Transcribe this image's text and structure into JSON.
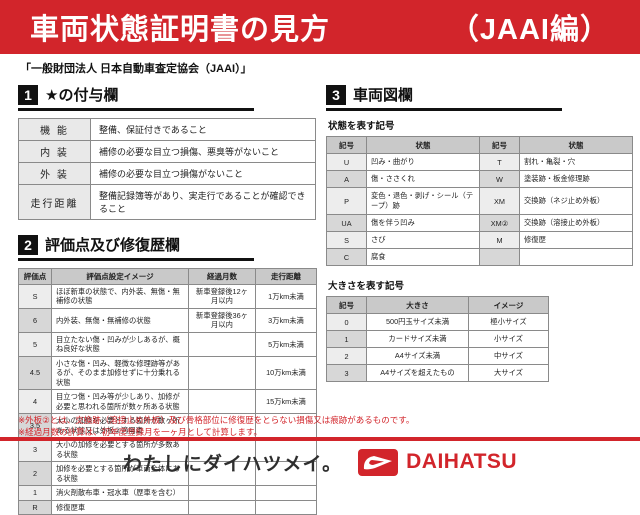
{
  "banner": {
    "title": "車両状態証明書の見方",
    "edition": "（JAAI編）"
  },
  "subtitle": "「一般財団法人 日本自動車査定協会（JAAI）」",
  "section1": {
    "number": "1",
    "title": "★の付与欄",
    "rows": [
      [
        "機 能",
        "整備、保証付きであること"
      ],
      [
        "内 装",
        "補修の必要な目立つ損傷、悪臭等がないこと"
      ],
      [
        "外 装",
        "補修の必要な目立つ損傷がないこと"
      ],
      [
        "走行距離",
        "整備記録簿等があり、実走行であることが確認できること"
      ]
    ]
  },
  "section2": {
    "number": "2",
    "title": "評価点及び修復歴欄",
    "headers": [
      "評価点",
      "評価点設定イメージ",
      "経過月数",
      "走行距離"
    ],
    "rows": [
      [
        "S",
        "ほぼ新車の状態で、内外装、無傷・無補修の状態",
        "新車登録後12ヶ月以内",
        "1万km未満"
      ],
      [
        "6",
        "内外装、無傷・無補修の状態",
        "新車登録後36ヶ月以内",
        "3万km未満"
      ],
      [
        "5",
        "目立たない傷・凹みが少しあるが、概ね良好な状態",
        "",
        "5万km未満"
      ],
      [
        "4.5",
        "小さな傷・凹み、軽微な修理跡等があるが、そのまま加修せずに十分乗れる状態",
        "",
        "10万km未満"
      ],
      [
        "4",
        "目立つ傷・凹み等が少しあり、加修が必要と思われる箇所が数ヶ所ある状態",
        "",
        "15万km未満"
      ],
      [
        "3.5",
        "大小の加修を必要とする箇所が数ヶ所ある状態又は外板②適用車",
        "",
        ""
      ],
      [
        "3",
        "大小の加修を必要とする箇所が多数ある状態",
        "",
        ""
      ],
      [
        "2",
        "加修を必要とする箇所が車両全体にある状態",
        "",
        ""
      ],
      [
        "1",
        "消火剤散布車・冠水車（歴車を含む）",
        "",
        ""
      ],
      [
        "R",
        "修復歴車",
        "",
        ""
      ]
    ]
  },
  "section3": {
    "number": "3",
    "title": "車両図欄",
    "condition_table": {
      "subtitle": "状態を表す記号",
      "headers": [
        "記号",
        "状態",
        "記号",
        "状態"
      ],
      "rows": [
        [
          "U",
          "凹み・曲がり",
          "T",
          "割れ・亀裂・穴"
        ],
        [
          "A",
          "傷・ささくれ",
          "W",
          "塗装跡・板金修理跡"
        ],
        [
          "P",
          "変色・退色・剥げ・シール（テープ）跡",
          "XM",
          "交換跡（ネジ止め外板）"
        ],
        [
          "UA",
          "傷を伴う凹み",
          "XM②",
          "交換跡（溶接止め外板）"
        ],
        [
          "S",
          "さび",
          "M",
          "修復歴"
        ],
        [
          "C",
          "腐食",
          "",
          ""
        ]
      ]
    },
    "size_table": {
      "subtitle": "大きさを表す記号",
      "headers": [
        "記号",
        "大きさ",
        "イメージ"
      ],
      "rows": [
        [
          "0",
          "500円玉サイズ未満",
          "極小サイズ"
        ],
        [
          "1",
          "カードサイズ未満",
          "小サイズ"
        ],
        [
          "2",
          "A4サイズ未満",
          "中サイズ"
        ],
        [
          "3",
          "A4サイズを超えたもの",
          "大サイズ"
        ]
      ]
    }
  },
  "notes": {
    "line1": "※外板②とは、交換跡（溶接止め外板）及び骨格部位に修復歴をとらない損傷又は痕跡があるものです。",
    "line2": "※経過月数の計算は、初年度登録月を一ヶ月として計算します。"
  },
  "footer": {
    "tagline": "わたしにダイハツメイ。",
    "brand": "DAIHATSU"
  },
  "colors": {
    "banner_red": "#d2252b",
    "note_red": "#d2252b",
    "brand_red": "#d2252b",
    "header_cell_gray": "#c9c9c9",
    "label_cell_gray": "#ededed",
    "label_cell_gray_alt": "#d7d7d7"
  }
}
